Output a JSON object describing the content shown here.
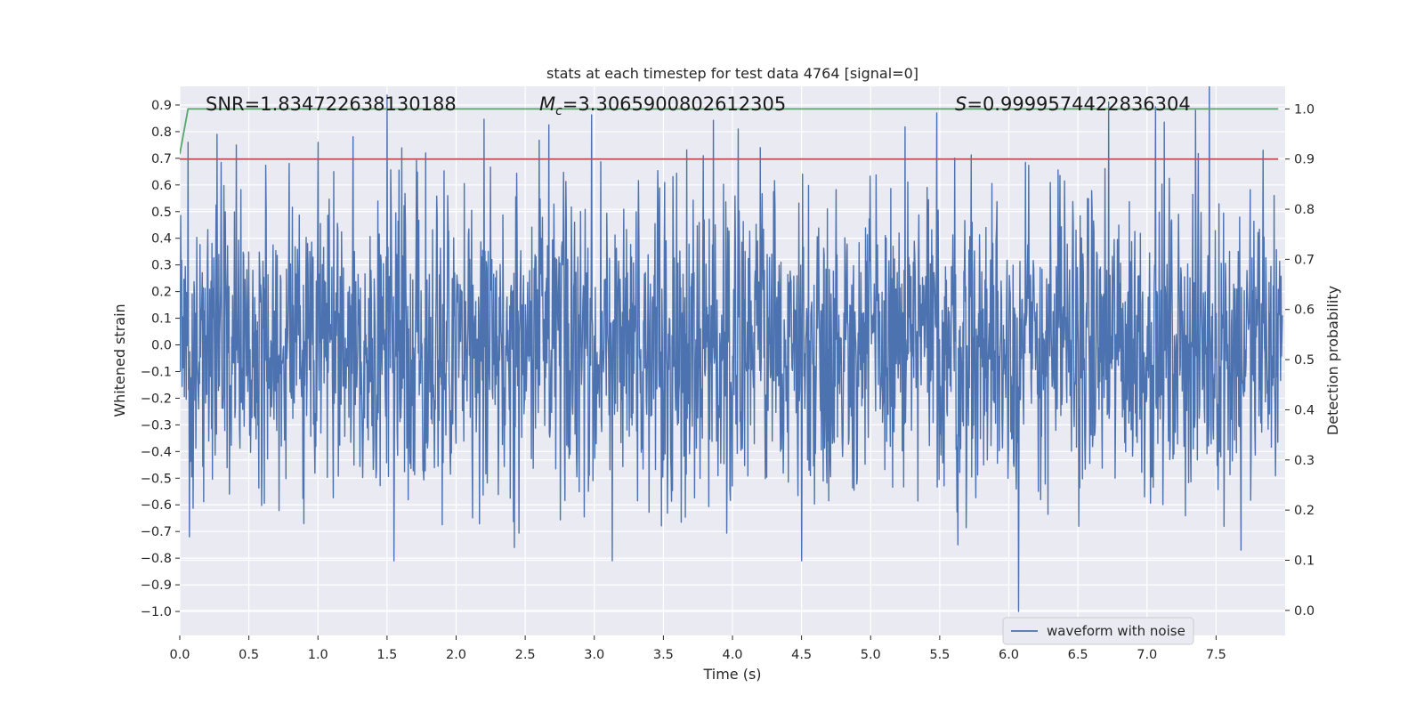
{
  "chart_data": {
    "type": "line",
    "title": "stats at each timestep for test data 4764 [signal=0]",
    "xlabel": "Time (s)",
    "ylabel": "Whitened strain",
    "y2label": "Detection probability",
    "xlim": [
      0.0,
      8.0
    ],
    "ylim": [
      -1.09,
      0.97
    ],
    "y2lim": [
      -0.05,
      1.045
    ],
    "xticks": [
      "0.0",
      "0.5",
      "1.0",
      "1.5",
      "2.0",
      "2.5",
      "3.0",
      "3.5",
      "4.0",
      "4.5",
      "5.0",
      "5.5",
      "6.0",
      "6.5",
      "7.0",
      "7.5"
    ],
    "yticks": [
      "0.9",
      "0.8",
      "0.7",
      "0.6",
      "0.5",
      "0.4",
      "0.3",
      "0.2",
      "0.1",
      "0.0",
      "−0.1",
      "−0.2",
      "−0.3",
      "−0.4",
      "−0.5",
      "−0.6",
      "−0.7",
      "−0.8",
      "−0.9",
      "−1.0"
    ],
    "y2ticks": [
      "1.0",
      "0.9",
      "0.8",
      "0.7",
      "0.6",
      "0.5",
      "0.4",
      "0.3",
      "0.2",
      "0.1",
      "0.0"
    ],
    "annotations": {
      "snr": "SNR=1.834722638130188",
      "mc_symbol": "M",
      "mc_sub": "c",
      "mc_value": "=3.3065900802612305",
      "s_symbol": "S",
      "s_value": "=0.9999574422836304"
    },
    "legend": {
      "label": "waveform with noise",
      "location": "lower-right"
    },
    "series": [
      {
        "name": "waveform with noise",
        "axis": "left",
        "color": "#4c72b0",
        "envelope": {
          "upper_typical": 0.45,
          "lower_typical": -0.45
        },
        "peaks": [
          {
            "x": 0.27,
            "y": 0.79
          },
          {
            "x": 0.41,
            "y": 0.75
          },
          {
            "x": 1.0,
            "y": 0.76
          },
          {
            "x": 1.78,
            "y": 0.72
          },
          {
            "x": 4.04,
            "y": 0.81
          },
          {
            "x": 4.2,
            "y": 0.74
          },
          {
            "x": 5.48,
            "y": 0.87
          },
          {
            "x": 7.35,
            "y": 0.88
          },
          {
            "x": 7.84,
            "y": 0.73
          },
          {
            "x": 0.06,
            "y": 0.76
          }
        ],
        "troughs": [
          {
            "x": 0.07,
            "y": -0.72
          },
          {
            "x": 1.55,
            "y": -0.81
          },
          {
            "x": 3.13,
            "y": -0.81
          },
          {
            "x": 4.5,
            "y": -0.81
          },
          {
            "x": 6.07,
            "y": -1.0
          },
          {
            "x": 7.68,
            "y": -0.77
          },
          {
            "x": 2.42,
            "y": -0.76
          },
          {
            "x": 5.63,
            "y": -0.75
          }
        ]
      },
      {
        "name": "threshold",
        "axis": "right",
        "color": "#c44e52",
        "x": [
          0.0,
          7.95
        ],
        "values": [
          0.9,
          0.9
        ]
      },
      {
        "name": "detection probability",
        "axis": "right",
        "color": "#55a868",
        "x": [
          0.0,
          0.06,
          7.95
        ],
        "values": [
          0.91,
          1.0,
          1.0
        ]
      }
    ]
  }
}
